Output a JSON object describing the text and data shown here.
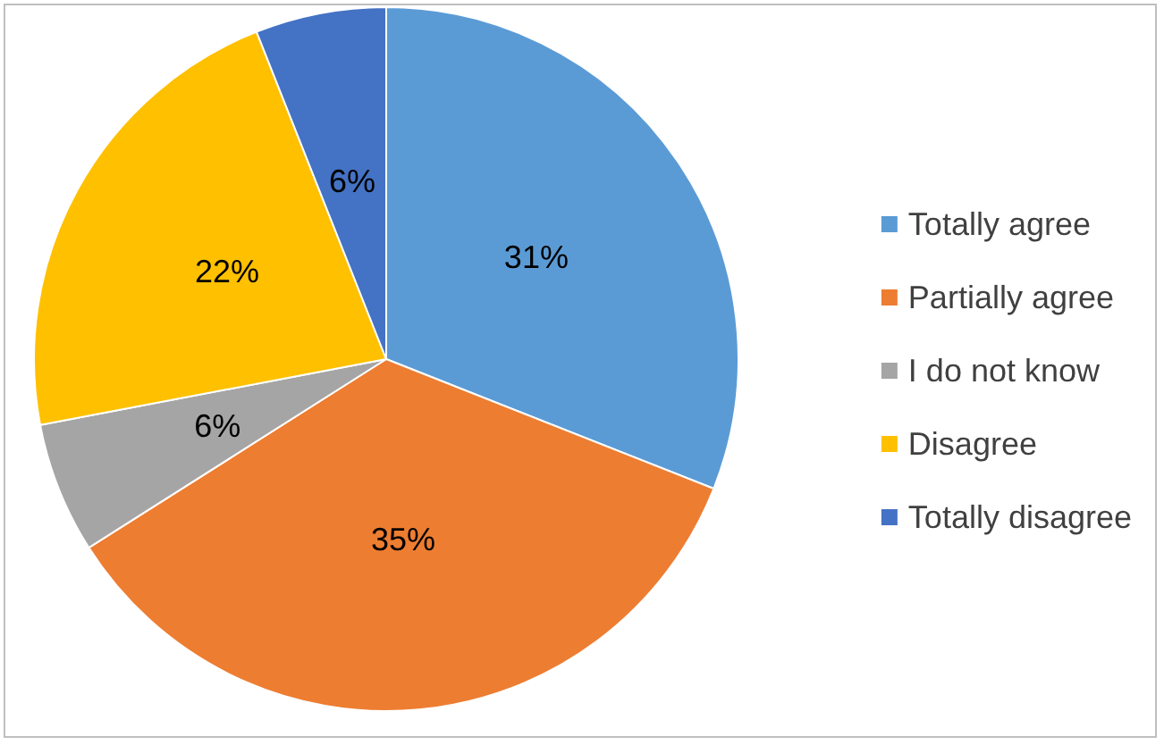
{
  "chart_data": {
    "type": "pie",
    "categories": [
      "Totally agree",
      "Partially agree",
      "I do not know",
      "Disagree",
      "Totally disagree"
    ],
    "values": [
      31,
      35,
      6,
      22,
      6
    ],
    "colors": [
      "#5b9bd5",
      "#ed7d31",
      "#a5a5a5",
      "#ffc000",
      "#4472c4"
    ],
    "value_labels": [
      "31%",
      "35%",
      "6%",
      "22%",
      "6%"
    ],
    "legend": "right"
  }
}
